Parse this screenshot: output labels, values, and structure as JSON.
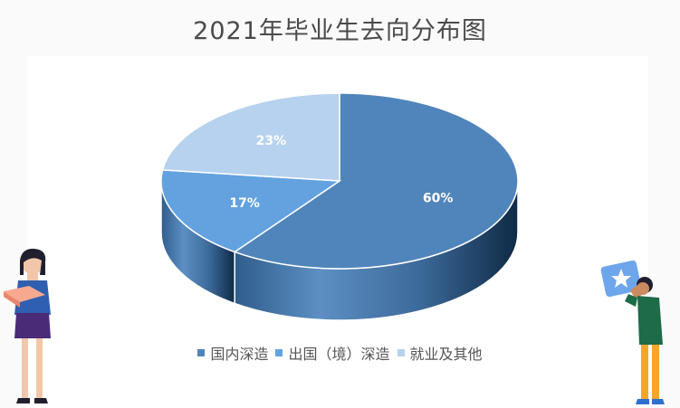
{
  "title": "2021年毕业生去向分布图",
  "chart_data": {
    "type": "pie",
    "title": "2021年毕业生去向分布图",
    "labels": [
      "国内深造",
      "出国（境）深造",
      "就业及其他"
    ],
    "values": [
      60,
      17,
      23
    ],
    "data_labels": [
      "60%",
      "17%",
      "23%"
    ],
    "colors": [
      "#5085bb",
      "#63a2df",
      "#b7d2ee"
    ],
    "legend_position": "bottom"
  }
}
